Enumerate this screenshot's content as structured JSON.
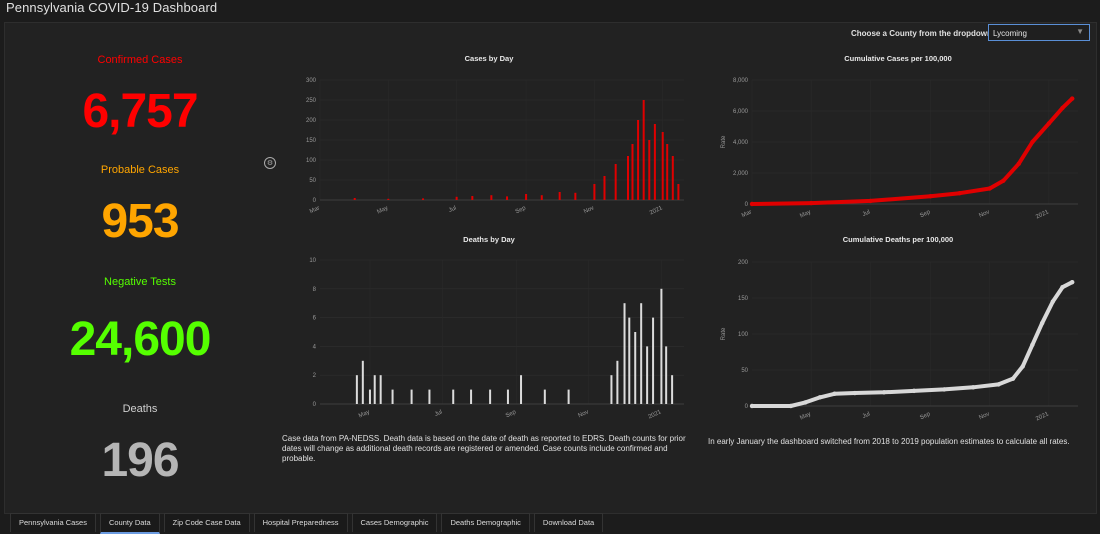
{
  "app": {
    "title": "Pennsylvania COVID-19 Dashboard"
  },
  "county_selector": {
    "label": "Choose a County from the dropdown",
    "value": "Lycoming"
  },
  "stats": {
    "confirmed": {
      "label": "Confirmed Cases",
      "value": "6,757",
      "color": "#ff0000"
    },
    "probable": {
      "label": "Probable Cases",
      "value": "953",
      "color": "#ffa500"
    },
    "negative": {
      "label": "Negative Tests",
      "value": "24,600",
      "color": "#55ff00"
    },
    "deaths": {
      "label": "Deaths",
      "value": "196",
      "color": "#b5b5b5"
    }
  },
  "footnotes": {
    "left": "Case data from PA-NEDSS.  Death data is based on the date of death as reported to EDRS. Death counts for prior dates will change as additional death records are registered or amended.  Case counts include confirmed and probable.",
    "right": "In early January the dashboard switched from 2018 to 2019 population estimates to calculate all rates."
  },
  "tabs": [
    {
      "label": "Pennsylvania Cases",
      "active": false
    },
    {
      "label": "County Data",
      "active": true
    },
    {
      "label": "Zip Code Case Data",
      "active": false
    },
    {
      "label": "Hospital Preparedness",
      "active": false
    },
    {
      "label": "Cases Demographic",
      "active": false
    },
    {
      "label": "Deaths Demographic",
      "active": false
    },
    {
      "label": "Download Data",
      "active": false
    }
  ],
  "chart_data": [
    {
      "id": "cases-by-day",
      "type": "bar",
      "title": "Cases by Day",
      "color": "#e00000",
      "ylim": [
        0,
        300
      ],
      "yticks": [
        0,
        50,
        100,
        150,
        200,
        250,
        300
      ],
      "xlim": [
        "2020-03-01",
        "2021-01-20"
      ],
      "xticks": [
        "Mar",
        "May",
        "Jul",
        "Sep",
        "Nov",
        "2021"
      ],
      "x": [
        "2020-03-01",
        "2020-04-01",
        "2020-05-01",
        "2020-06-01",
        "2020-07-01",
        "2020-07-15",
        "2020-08-01",
        "2020-08-15",
        "2020-09-01",
        "2020-09-15",
        "2020-10-01",
        "2020-10-15",
        "2020-11-01",
        "2020-11-10",
        "2020-11-20",
        "2020-12-01",
        "2020-12-05",
        "2020-12-10",
        "2020-12-15",
        "2020-12-20",
        "2020-12-25",
        "2021-01-01",
        "2021-01-05",
        "2021-01-10",
        "2021-01-15"
      ],
      "values": [
        0,
        5,
        3,
        4,
        8,
        10,
        12,
        9,
        15,
        12,
        20,
        18,
        40,
        60,
        90,
        110,
        140,
        200,
        250,
        150,
        190,
        170,
        140,
        110,
        40
      ]
    },
    {
      "id": "cumulative-cases",
      "type": "line",
      "title": "Cumulative Cases per 100,000",
      "color": "#e00000",
      "ylabel": "Rate",
      "ylim": [
        0,
        8000
      ],
      "yticks": [
        "0",
        "2,000",
        "4,000",
        "6,000",
        "8,000"
      ],
      "xlim": [
        "2020-03-01",
        "2021-01-31"
      ],
      "xticks": [
        "Mar",
        "May",
        "Jul",
        "Sep",
        "Nov",
        "2021"
      ],
      "x": [
        "2020-03-01",
        "2020-05-01",
        "2020-07-01",
        "2020-09-01",
        "2020-10-01",
        "2020-11-01",
        "2020-11-15",
        "2020-12-01",
        "2020-12-15",
        "2021-01-01",
        "2021-01-15",
        "2021-01-25"
      ],
      "values": [
        0,
        60,
        200,
        500,
        700,
        1000,
        1500,
        2600,
        4000,
        5200,
        6200,
        6800
      ]
    },
    {
      "id": "deaths-by-day",
      "type": "bar",
      "title": "Deaths by Day",
      "color": "#dcdcdc",
      "ylim": [
        0,
        10
      ],
      "yticks": [
        0,
        2,
        4,
        6,
        8,
        10
      ],
      "xlim": [
        "2020-03-20",
        "2021-01-20"
      ],
      "xticks": [
        "May",
        "Jul",
        "Sep",
        "Nov",
        "2021"
      ],
      "x": [
        "2020-04-20",
        "2020-04-25",
        "2020-05-01",
        "2020-05-05",
        "2020-05-10",
        "2020-05-20",
        "2020-06-05",
        "2020-06-20",
        "2020-07-10",
        "2020-07-25",
        "2020-08-10",
        "2020-08-25",
        "2020-09-05",
        "2020-09-25",
        "2020-10-15",
        "2020-11-20",
        "2020-11-25",
        "2020-12-01",
        "2020-12-05",
        "2020-12-10",
        "2020-12-15",
        "2020-12-20",
        "2020-12-25",
        "2021-01-01",
        "2021-01-05",
        "2021-01-10"
      ],
      "values": [
        2,
        3,
        1,
        2,
        2,
        1,
        1,
        1,
        1,
        1,
        1,
        1,
        2,
        1,
        1,
        2,
        3,
        7,
        6,
        5,
        7,
        4,
        6,
        8,
        4,
        2
      ]
    },
    {
      "id": "cumulative-deaths",
      "type": "line",
      "title": "Cumulative Deaths per 100,000",
      "color": "#d8d8d8",
      "ylabel": "Rate",
      "ylim": [
        0,
        200
      ],
      "yticks": [
        "0",
        "50",
        "100",
        "150",
        "200"
      ],
      "xlim": [
        "2020-03-01",
        "2021-01-31"
      ],
      "xticks": [
        "May",
        "Jul",
        "Sep",
        "Nov",
        "2021"
      ],
      "x": [
        "2020-03-01",
        "2020-04-10",
        "2020-04-25",
        "2020-05-10",
        "2020-05-25",
        "2020-06-15",
        "2020-07-15",
        "2020-08-15",
        "2020-09-15",
        "2020-10-15",
        "2020-11-10",
        "2020-11-25",
        "2020-12-05",
        "2020-12-15",
        "2020-12-25",
        "2021-01-05",
        "2021-01-15",
        "2021-01-25"
      ],
      "values": [
        0,
        0,
        5,
        12,
        17,
        18,
        19,
        21,
        23,
        26,
        30,
        38,
        55,
        85,
        115,
        145,
        165,
        172
      ]
    }
  ]
}
